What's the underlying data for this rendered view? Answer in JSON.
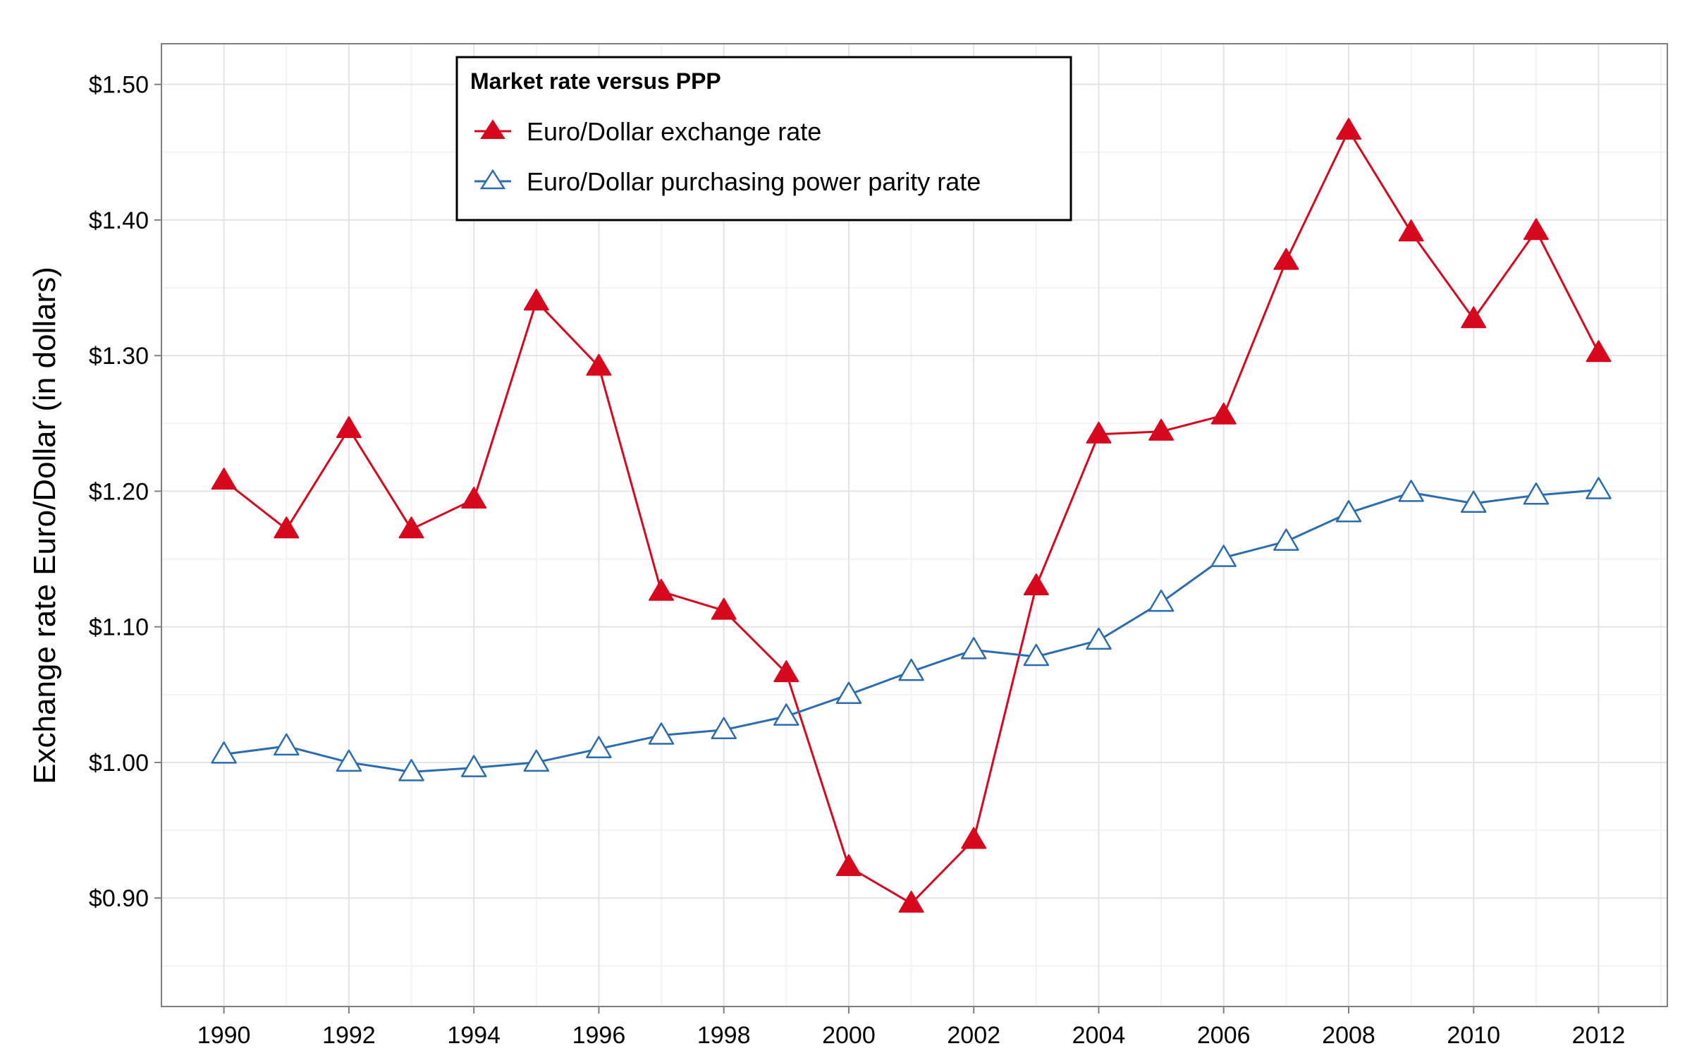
{
  "chart_data": {
    "type": "line",
    "title": "",
    "xlabel": "",
    "ylabel": "Exchange rate Euro/Dollar (in dollars)",
    "x": [
      1990,
      1991,
      1992,
      1993,
      1994,
      1995,
      1996,
      1997,
      1998,
      1999,
      2000,
      2001,
      2002,
      2003,
      2004,
      2005,
      2006,
      2007,
      2008,
      2009,
      2010,
      2011,
      2012
    ],
    "x_ticks": [
      "1990",
      "1992",
      "1994",
      "1996",
      "1998",
      "2000",
      "2002",
      "2004",
      "2006",
      "2008",
      "2010",
      "2012"
    ],
    "y_ticks": [
      "$0.90",
      "$1.00",
      "$1.10",
      "$1.20",
      "$1.30",
      "$1.40",
      "$1.50"
    ],
    "xlim": [
      1989,
      2013.1
    ],
    "ylim": [
      0.82,
      1.53
    ],
    "grid": true,
    "legend": {
      "title": "Market rate versus PPP",
      "position": "top-left"
    },
    "series": [
      {
        "name": "Euro/Dollar exchange rate",
        "color": "#d7071e",
        "marker": "filled-triangle",
        "values": [
          1.208,
          1.172,
          1.246,
          1.172,
          1.194,
          1.34,
          1.292,
          1.126,
          1.112,
          1.066,
          0.923,
          0.896,
          0.943,
          1.13,
          1.242,
          1.244,
          1.256,
          1.37,
          1.466,
          1.391,
          1.327,
          1.392,
          1.302
        ]
      },
      {
        "name": "Euro/Dollar purchasing power parity rate",
        "color": "#2b6cb0",
        "marker": "open-triangle",
        "values": [
          1.006,
          1.012,
          1.0,
          0.993,
          0.996,
          1.0,
          1.01,
          1.02,
          1.024,
          1.034,
          1.05,
          1.067,
          1.083,
          1.078,
          1.09,
          1.118,
          1.151,
          1.163,
          1.184,
          1.199,
          1.191,
          1.197,
          1.201
        ]
      }
    ]
  }
}
